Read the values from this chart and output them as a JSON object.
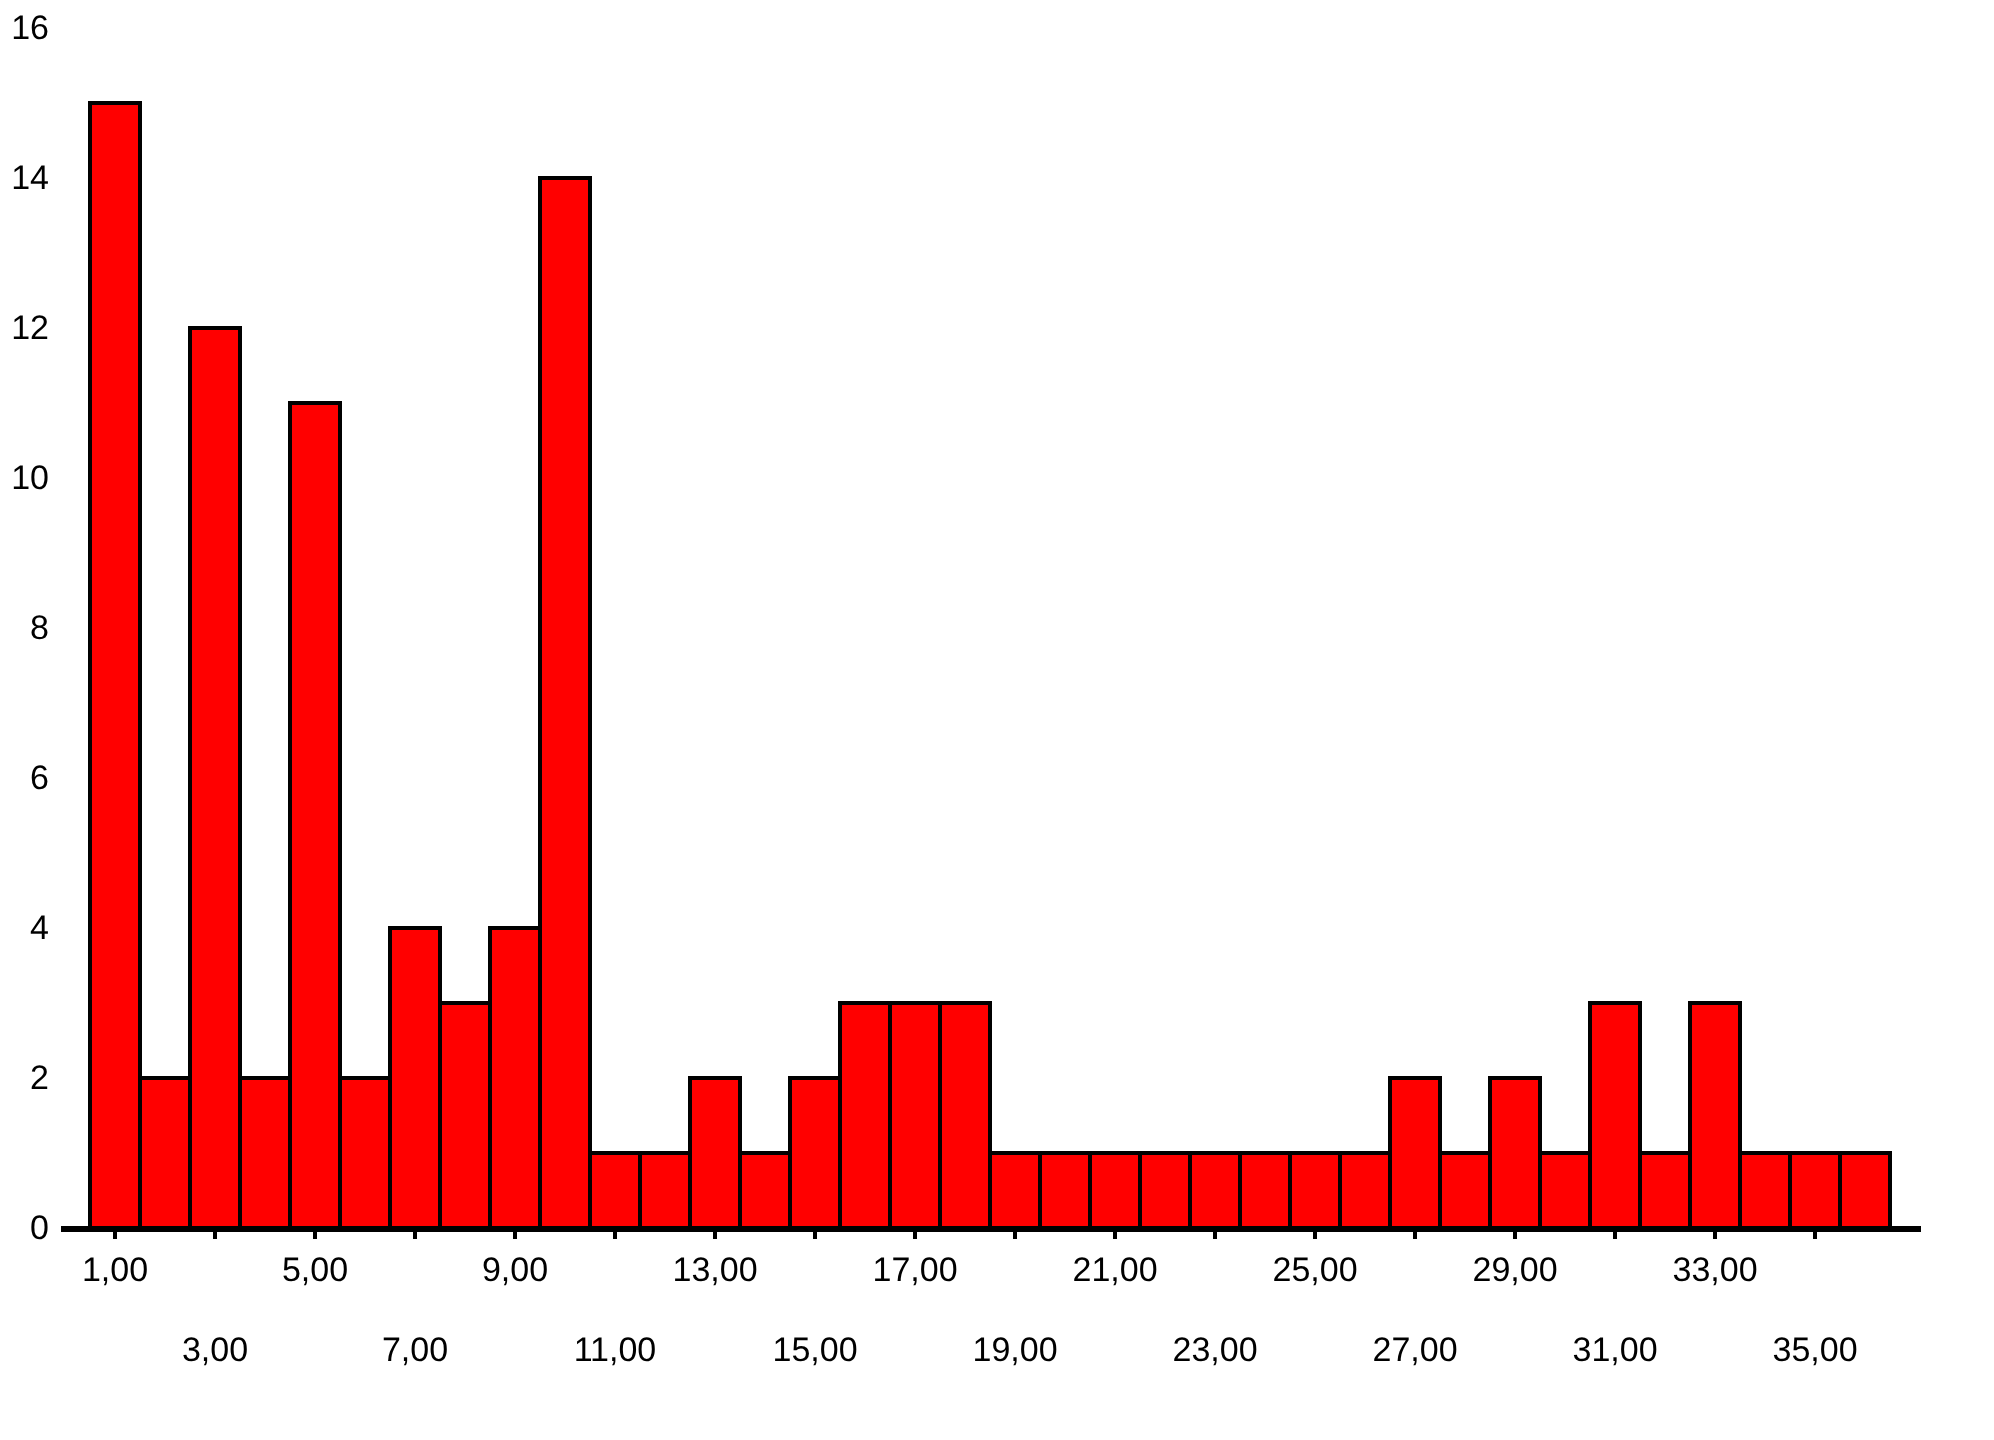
{
  "chart_data": {
    "type": "bar",
    "categories": [
      "1,00",
      null,
      "3,00",
      null,
      "5,00",
      null,
      "7,00",
      null,
      "9,00",
      null,
      "11,00",
      null,
      "13,00",
      null,
      "15,00",
      null,
      "17,00",
      null,
      "19,00",
      null,
      "21,00",
      null,
      "23,00",
      null,
      "25,00",
      null,
      "27,00",
      null,
      "29,00",
      null,
      "31,00",
      null,
      "33,00",
      null,
      "35,00",
      null
    ],
    "values": [
      15,
      2,
      12,
      2,
      11,
      2,
      4,
      3,
      4,
      14,
      1,
      1,
      2,
      1,
      2,
      3,
      3,
      3,
      1,
      1,
      1,
      1,
      1,
      1,
      1,
      1,
      2,
      1,
      2,
      1,
      3,
      1,
      3,
      1,
      1,
      1
    ],
    "color": "#ff0000",
    "ylim": [
      0,
      16
    ],
    "yticks": [
      0,
      2,
      4,
      6,
      8,
      10,
      12,
      14,
      16
    ],
    "grid": false
  }
}
